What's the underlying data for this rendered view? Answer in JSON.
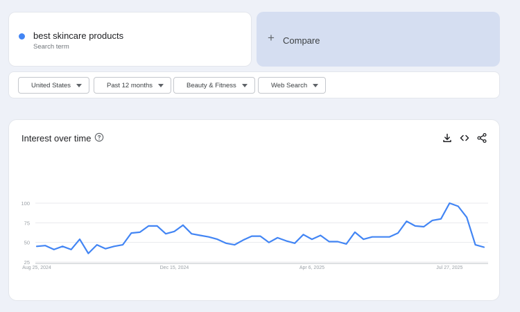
{
  "search": {
    "term": "best skincare products",
    "term_type": "Search term",
    "term_color": "#4285f4"
  },
  "compare": {
    "label": "Compare"
  },
  "filters": [
    {
      "label": "United States"
    },
    {
      "label": "Past 12 months"
    },
    {
      "label": "Beauty & Fitness"
    },
    {
      "label": "Web Search"
    }
  ],
  "panel": {
    "title": "Interest over time",
    "icons": [
      "help-icon",
      "download-icon",
      "embed-icon",
      "share-icon"
    ]
  },
  "chart_data": {
    "type": "line",
    "title": "",
    "xlabel": "",
    "ylabel": "",
    "ylim": [
      0,
      100
    ],
    "y_ticks": [
      25,
      50,
      75,
      100
    ],
    "x_tick_labels": [
      "Aug 25, 2024",
      "Dec 15, 2024",
      "Apr 6, 2025",
      "Jul 27, 2025"
    ],
    "x_tick_indices": [
      0,
      16,
      32,
      48
    ],
    "grid": true,
    "series": [
      {
        "color": "#4285f4",
        "values": [
          45,
          46,
          41,
          45,
          41,
          54,
          36,
          47,
          42,
          45,
          47,
          62,
          63,
          71,
          71,
          61,
          64,
          72,
          61,
          59,
          57,
          54,
          49,
          47,
          53,
          58,
          58,
          50,
          56,
          52,
          49,
          60,
          54,
          59,
          51,
          51,
          48,
          63,
          54,
          57,
          57,
          57,
          62,
          77,
          71,
          70,
          78,
          80,
          100,
          96,
          82,
          47,
          44
        ]
      }
    ]
  }
}
